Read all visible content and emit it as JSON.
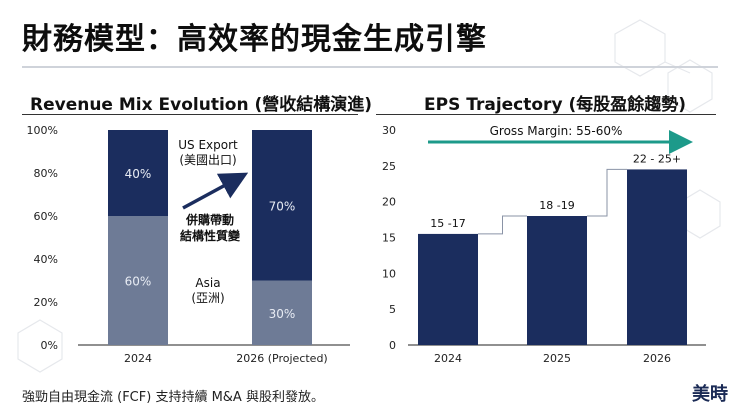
{
  "header": {
    "title": "財務模型：高效率的現金生成引擎"
  },
  "footer": {
    "note": "強勁自由現金流 (FCF) 支持持續 M&A 與股利發放。",
    "brand": "美時"
  },
  "colors": {
    "navy": "#1b2d5e",
    "slate": "#6e7b96",
    "teal": "#1d9a8a",
    "axis": "#222222"
  },
  "chart_data": [
    {
      "type": "bar",
      "stacked": true,
      "title": "Revenue Mix Evolution (營收結構演進)",
      "categories": [
        "2024",
        "2026 (Projected)"
      ],
      "series": [
        {
          "name": "Asia (亞洲)",
          "values": [
            60,
            30
          ],
          "labels": [
            "60%",
            "30%"
          ]
        },
        {
          "name": "US Export (美國出口)",
          "values": [
            40,
            70
          ],
          "labels": [
            "40%",
            "70%"
          ]
        }
      ],
      "ylim": [
        0,
        100
      ],
      "yticks": [
        "0%",
        "20%",
        "40%",
        "60%",
        "80%",
        "100%"
      ],
      "annotations": {
        "us_export_line1": "US Export",
        "us_export_line2": "(美國出口)",
        "asia_line1": "Asia",
        "asia_line2": "(亞洲)",
        "driver_line1": "併購帶動",
        "driver_line2": "結構性質變"
      }
    },
    {
      "type": "bar",
      "title": "EPS Trajectory (每股盈餘趨勢)",
      "categories": [
        "2024",
        "2025",
        "2026"
      ],
      "values": [
        15.5,
        18,
        24.5
      ],
      "labels": [
        "15 -17",
        "18 -19",
        "22 - 25+"
      ],
      "ylim": [
        0,
        30
      ],
      "yticks": [
        "0",
        "5",
        "10",
        "15",
        "20",
        "25",
        "30"
      ],
      "annotation": "Gross Margin: 55-60%"
    }
  ]
}
